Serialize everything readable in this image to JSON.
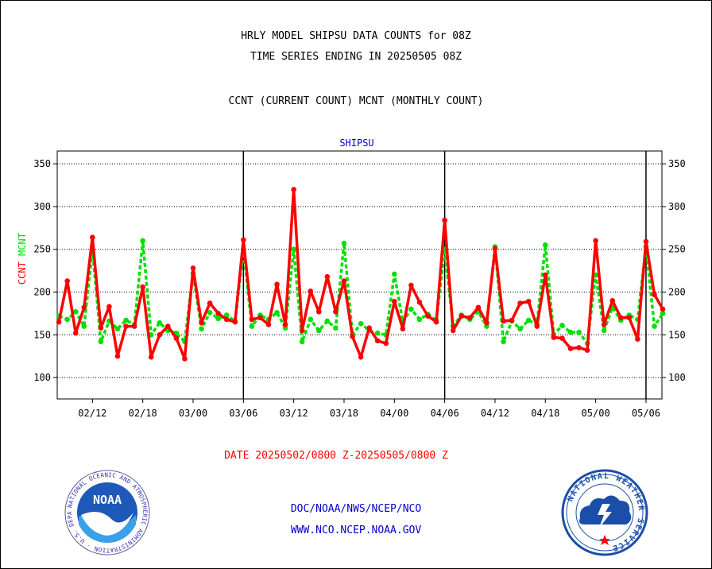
{
  "header": {
    "line1": "HRLY MODEL SHIPSU DATA COUNTS for 08Z",
    "line2": "TIME SERIES ENDING IN 20250505 08Z",
    "line3": "CCNT (CURRENT COUNT) MCNT (MONTHLY COUNT)"
  },
  "axis_label_left_ccnt": "CCNT",
  "axis_label_left_mcnt": "MCNT",
  "date_range": "DATE 20250502/0800 Z-20250505/0800 Z",
  "footer": {
    "org": "DOC/NOAA/NWS/NCEP/NCO",
    "url": "WWW.NCO.NCEP.NOAA.GOV"
  },
  "logos": {
    "noaa_text": "NOAA",
    "noaa_ring": "NATIONAL OCEANIC AND ATMOSPHERIC ADMINISTRATION · U.S. DEPARTMENT OF COMMERCE",
    "nws_ring": "NATIONAL WEATHER SERVICE"
  },
  "colors": {
    "ccnt": "#ff0000",
    "mcnt": "#00e000",
    "title": "#0000cc"
  },
  "chart_data": {
    "type": "line",
    "title": "SHIPSU",
    "ylim": [
      75,
      365
    ],
    "yticks": [
      100,
      150,
      200,
      250,
      300,
      350
    ],
    "grid": true,
    "x_tick_labels": [
      "02/12",
      "02/18",
      "03/00",
      "03/06",
      "03/12",
      "03/18",
      "04/00",
      "04/06",
      "04/12",
      "04/18",
      "05/00",
      "05/06"
    ],
    "x_tick_index": [
      4,
      10,
      16,
      22,
      28,
      34,
      40,
      46,
      52,
      58,
      64,
      70
    ],
    "day_separator_index": [
      22,
      46,
      70
    ],
    "x_index_range": [
      -0.2,
      71.9
    ],
    "series": [
      {
        "name": "CCNT",
        "color": "#ff0000",
        "style": "solid",
        "values": [
          165,
          213,
          152,
          182,
          264,
          158,
          183,
          125,
          160,
          160,
          206,
          124,
          150,
          160,
          146,
          122,
          228,
          164,
          187,
          175,
          168,
          165,
          261,
          168,
          170,
          162,
          209,
          162,
          320,
          155,
          201,
          177,
          218,
          177,
          213,
          148,
          124,
          158,
          143,
          140,
          189,
          157,
          208,
          188,
          172,
          165,
          284,
          155,
          172,
          170,
          182,
          164,
          251,
          166,
          167,
          187,
          189,
          160,
          220,
          147,
          146,
          134,
          135,
          132,
          260,
          162,
          190,
          170,
          170,
          145,
          259,
          197,
          180
        ]
      },
      {
        "name": "MCNT",
        "color": "#00e000",
        "style": "dashed",
        "values": [
          172,
          168,
          177,
          160,
          250,
          142,
          166,
          157,
          167,
          162,
          260,
          150,
          164,
          155,
          152,
          142,
          222,
          157,
          176,
          169,
          173,
          166,
          250,
          160,
          173,
          168,
          176,
          158,
          250,
          142,
          168,
          155,
          166,
          158,
          257,
          150,
          163,
          155,
          152,
          150,
          221,
          165,
          180,
          168,
          174,
          167,
          250,
          160,
          173,
          168,
          177,
          160,
          253,
          142,
          166,
          157,
          167,
          162,
          255,
          150,
          161,
          153,
          153,
          140,
          220,
          155,
          182,
          167,
          173,
          168,
          253,
          160,
          175
        ]
      }
    ]
  }
}
